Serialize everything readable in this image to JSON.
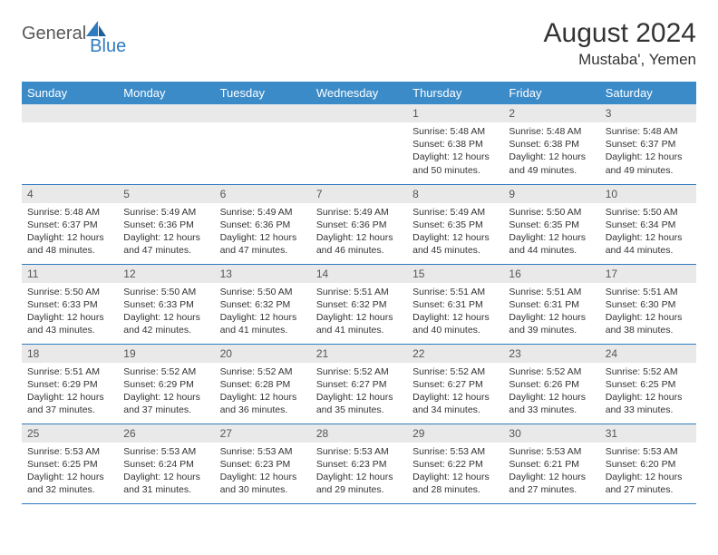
{
  "brand": {
    "word1": "General",
    "word2": "Blue"
  },
  "title": "August 2024",
  "location": "Mustaba', Yemen",
  "colors": {
    "header_bg": "#3b8bc9",
    "header_text": "#ffffff",
    "row_border": "#2f7bbf",
    "daynum_bg": "#e9e9e9",
    "text": "#333333",
    "logo_gray": "#595959",
    "logo_blue": "#2f7bbf"
  },
  "day_headers": [
    "Sunday",
    "Monday",
    "Tuesday",
    "Wednesday",
    "Thursday",
    "Friday",
    "Saturday"
  ],
  "weeks": [
    [
      null,
      null,
      null,
      null,
      {
        "n": "1",
        "sr": "5:48 AM",
        "ss": "6:38 PM",
        "dl": "12 hours and 50 minutes."
      },
      {
        "n": "2",
        "sr": "5:48 AM",
        "ss": "6:38 PM",
        "dl": "12 hours and 49 minutes."
      },
      {
        "n": "3",
        "sr": "5:48 AM",
        "ss": "6:37 PM",
        "dl": "12 hours and 49 minutes."
      }
    ],
    [
      {
        "n": "4",
        "sr": "5:48 AM",
        "ss": "6:37 PM",
        "dl": "12 hours and 48 minutes."
      },
      {
        "n": "5",
        "sr": "5:49 AM",
        "ss": "6:36 PM",
        "dl": "12 hours and 47 minutes."
      },
      {
        "n": "6",
        "sr": "5:49 AM",
        "ss": "6:36 PM",
        "dl": "12 hours and 47 minutes."
      },
      {
        "n": "7",
        "sr": "5:49 AM",
        "ss": "6:36 PM",
        "dl": "12 hours and 46 minutes."
      },
      {
        "n": "8",
        "sr": "5:49 AM",
        "ss": "6:35 PM",
        "dl": "12 hours and 45 minutes."
      },
      {
        "n": "9",
        "sr": "5:50 AM",
        "ss": "6:35 PM",
        "dl": "12 hours and 44 minutes."
      },
      {
        "n": "10",
        "sr": "5:50 AM",
        "ss": "6:34 PM",
        "dl": "12 hours and 44 minutes."
      }
    ],
    [
      {
        "n": "11",
        "sr": "5:50 AM",
        "ss": "6:33 PM",
        "dl": "12 hours and 43 minutes."
      },
      {
        "n": "12",
        "sr": "5:50 AM",
        "ss": "6:33 PM",
        "dl": "12 hours and 42 minutes."
      },
      {
        "n": "13",
        "sr": "5:50 AM",
        "ss": "6:32 PM",
        "dl": "12 hours and 41 minutes."
      },
      {
        "n": "14",
        "sr": "5:51 AM",
        "ss": "6:32 PM",
        "dl": "12 hours and 41 minutes."
      },
      {
        "n": "15",
        "sr": "5:51 AM",
        "ss": "6:31 PM",
        "dl": "12 hours and 40 minutes."
      },
      {
        "n": "16",
        "sr": "5:51 AM",
        "ss": "6:31 PM",
        "dl": "12 hours and 39 minutes."
      },
      {
        "n": "17",
        "sr": "5:51 AM",
        "ss": "6:30 PM",
        "dl": "12 hours and 38 minutes."
      }
    ],
    [
      {
        "n": "18",
        "sr": "5:51 AM",
        "ss": "6:29 PM",
        "dl": "12 hours and 37 minutes."
      },
      {
        "n": "19",
        "sr": "5:52 AM",
        "ss": "6:29 PM",
        "dl": "12 hours and 37 minutes."
      },
      {
        "n": "20",
        "sr": "5:52 AM",
        "ss": "6:28 PM",
        "dl": "12 hours and 36 minutes."
      },
      {
        "n": "21",
        "sr": "5:52 AM",
        "ss": "6:27 PM",
        "dl": "12 hours and 35 minutes."
      },
      {
        "n": "22",
        "sr": "5:52 AM",
        "ss": "6:27 PM",
        "dl": "12 hours and 34 minutes."
      },
      {
        "n": "23",
        "sr": "5:52 AM",
        "ss": "6:26 PM",
        "dl": "12 hours and 33 minutes."
      },
      {
        "n": "24",
        "sr": "5:52 AM",
        "ss": "6:25 PM",
        "dl": "12 hours and 33 minutes."
      }
    ],
    [
      {
        "n": "25",
        "sr": "5:53 AM",
        "ss": "6:25 PM",
        "dl": "12 hours and 32 minutes."
      },
      {
        "n": "26",
        "sr": "5:53 AM",
        "ss": "6:24 PM",
        "dl": "12 hours and 31 minutes."
      },
      {
        "n": "27",
        "sr": "5:53 AM",
        "ss": "6:23 PM",
        "dl": "12 hours and 30 minutes."
      },
      {
        "n": "28",
        "sr": "5:53 AM",
        "ss": "6:23 PM",
        "dl": "12 hours and 29 minutes."
      },
      {
        "n": "29",
        "sr": "5:53 AM",
        "ss": "6:22 PM",
        "dl": "12 hours and 28 minutes."
      },
      {
        "n": "30",
        "sr": "5:53 AM",
        "ss": "6:21 PM",
        "dl": "12 hours and 27 minutes."
      },
      {
        "n": "31",
        "sr": "5:53 AM",
        "ss": "6:20 PM",
        "dl": "12 hours and 27 minutes."
      }
    ]
  ],
  "labels": {
    "sunrise": "Sunrise:",
    "sunset": "Sunset:",
    "daylight": "Daylight:"
  }
}
